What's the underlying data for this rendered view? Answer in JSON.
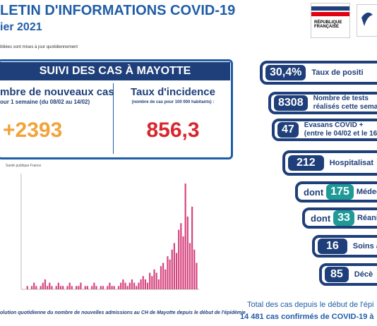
{
  "header": {
    "title": "LETIN D'INFORMATIONS COVID-19",
    "date": "ier 2021",
    "note": "ibliées sont mises à jour quotidiennement",
    "logo_text": "RÉPUBLIQUE FRANÇAISE"
  },
  "summary": {
    "heading": "SUIVI DES CAS À MAYOTTE",
    "new_cases": {
      "label": "mbre de nouveaux cas",
      "sub": "our 1 semaine (du 08/02 au 14/02)",
      "value": "+2393"
    },
    "incidence": {
      "label": "Taux d'incidence",
      "sub": "(nombre de cas pour 100 000 habitants) :",
      "value": "856,3"
    }
  },
  "chart": {
    "type": "bar",
    "legend": "Santé publique France",
    "caption": "olution quotidienne du nombre de nouvelles admissions au CH de Mayotte depuis le début de l'épidémie",
    "color": "#d6457f",
    "ylim": [
      0,
      35
    ],
    "values": [
      0,
      1,
      0,
      1,
      2,
      1,
      0,
      1,
      2,
      3,
      1,
      2,
      1,
      0,
      1,
      2,
      1,
      1,
      0,
      1,
      2,
      1,
      0,
      1,
      1,
      2,
      0,
      1,
      1,
      0,
      1,
      2,
      1,
      0,
      1,
      1,
      0,
      1,
      2,
      1,
      1,
      0,
      1,
      2,
      3,
      2,
      1,
      2,
      3,
      2,
      1,
      2,
      3,
      4,
      3,
      2,
      5,
      4,
      6,
      5,
      3,
      7,
      8,
      6,
      10,
      9,
      12,
      14,
      11,
      18,
      20,
      16,
      32,
      22,
      14,
      25,
      12,
      8
    ]
  },
  "indicators": [
    {
      "value": "30,4%",
      "label": "Taux de positi"
    },
    {
      "value": "8308",
      "label": "Nombre de tests réalisés cette semain"
    },
    {
      "value": "47",
      "label": "Evasans COVID + (entre le 04/02 et le 16"
    },
    {
      "value": "212",
      "label": "Hospitalisat"
    },
    {
      "prefix": "dont",
      "value": "175",
      "label": "Médec"
    },
    {
      "prefix": "dont",
      "value": "33",
      "label": "Réani"
    },
    {
      "value": "16",
      "label": "Soins a"
    },
    {
      "value": "85",
      "label": "Décè"
    }
  ],
  "footer": {
    "line1": "Total des cas depuis le début de l'épi",
    "line2": "14 481 cas confirmés de COVID-19 à"
  }
}
